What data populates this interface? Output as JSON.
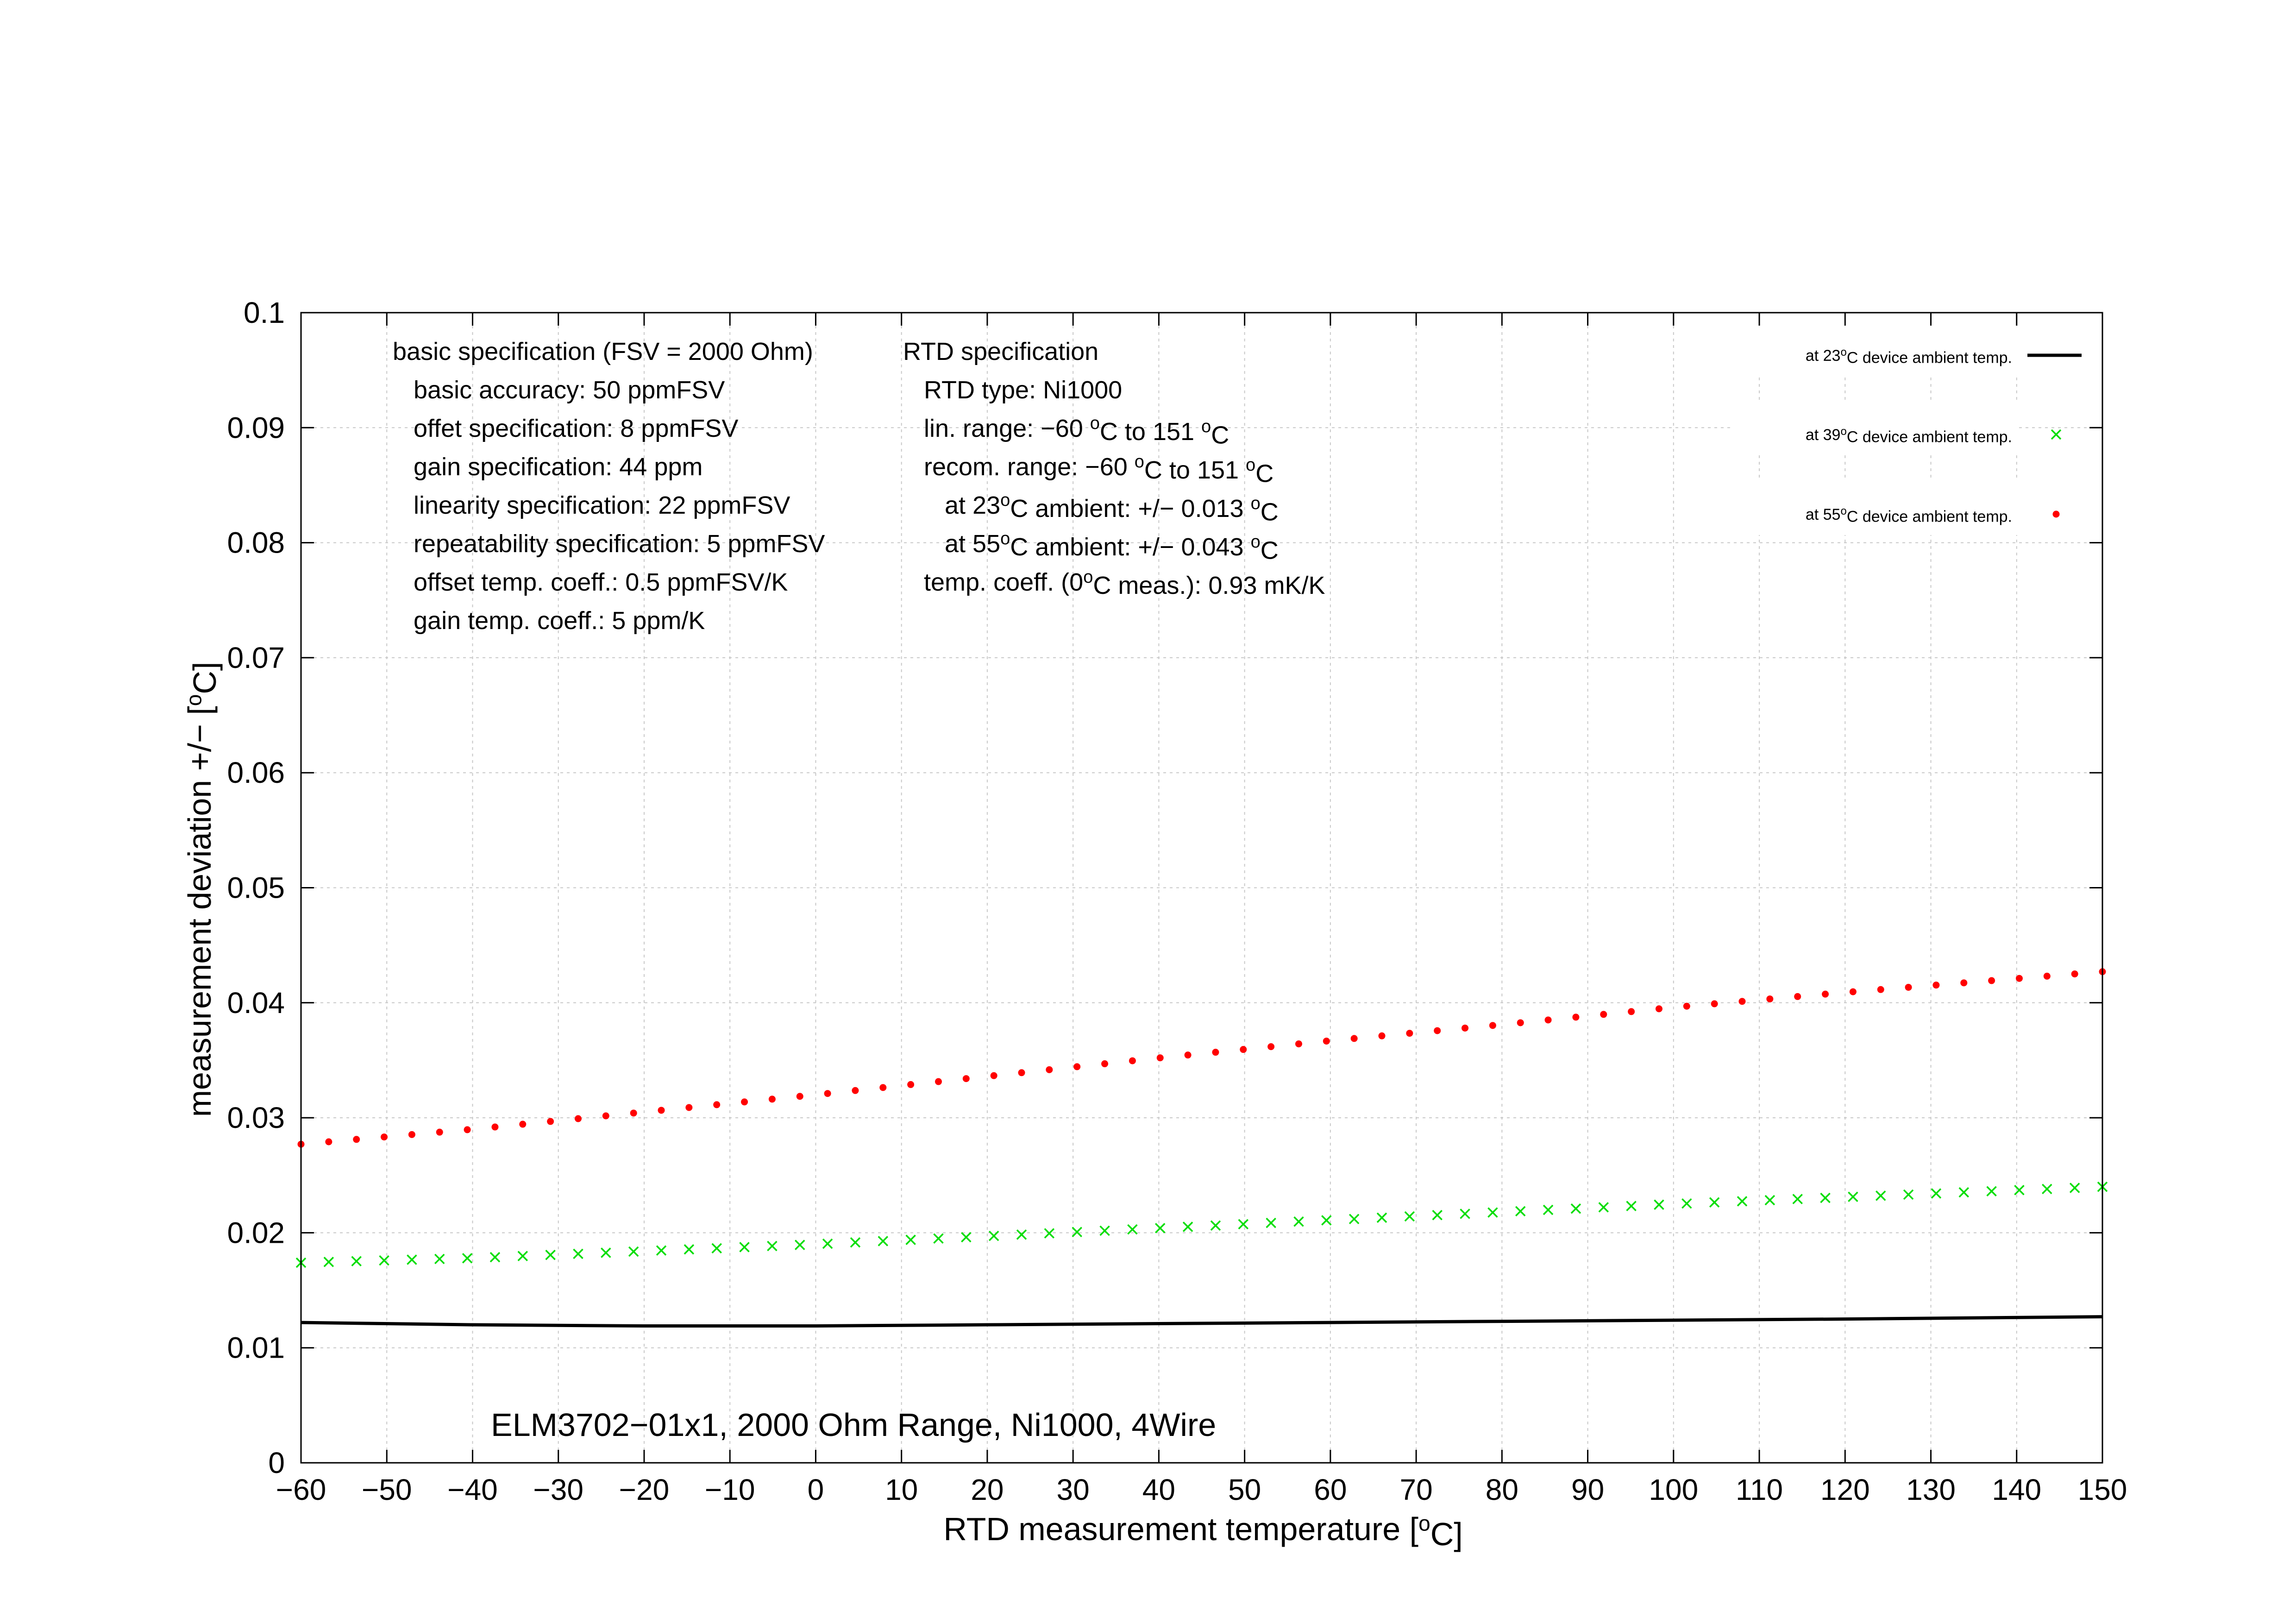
{
  "chart_data": {
    "type": "line",
    "title": "ELM3702−01x1, 2000 Ohm Range, Ni1000, 4Wire",
    "xlabel": {
      "pre": "RTD measurement temperature [",
      "sup": "o",
      "post": "C]"
    },
    "ylabel": {
      "pre": "measurement deviation +/− [",
      "sup": "o",
      "post": "C]"
    },
    "xlim": [
      -60,
      150
    ],
    "ylim": [
      0,
      0.1
    ],
    "grid": true,
    "legend_position": "top-right",
    "xticks": [
      -60,
      -50,
      -40,
      -30,
      -20,
      -10,
      0,
      10,
      20,
      30,
      40,
      50,
      60,
      70,
      80,
      90,
      100,
      110,
      120,
      130,
      140,
      150
    ],
    "xtick_labels": [
      "−60",
      "−50",
      "−40",
      "−30",
      "−20",
      "−10",
      "0",
      "10",
      "20",
      "30",
      "40",
      "50",
      "60",
      "70",
      "80",
      "90",
      "100",
      "110",
      "120",
      "130",
      "140",
      "150"
    ],
    "yticks": [
      0,
      0.01,
      0.02,
      0.03,
      0.04,
      0.05,
      0.06,
      0.07,
      0.08,
      0.09,
      0.1
    ],
    "ytick_labels": [
      "0",
      "0.01",
      "0.02",
      "0.03",
      "0.04",
      "0.05",
      "0.06",
      "0.07",
      "0.08",
      "0.09",
      "0.1"
    ],
    "series": [
      {
        "legend": [
          {
            "t": "at 23"
          },
          {
            "t": "o",
            "sup": true
          },
          {
            "t": "C device ambient temp."
          }
        ],
        "style": "line",
        "color": "#000000",
        "x": [
          -60,
          -40,
          -20,
          0,
          20,
          40,
          60,
          80,
          100,
          120,
          150
        ],
        "values": [
          0.0122,
          0.012,
          0.0119,
          0.0119,
          0.012,
          0.0121,
          0.0122,
          0.0123,
          0.0124,
          0.0125,
          0.0127
        ]
      },
      {
        "legend": [
          {
            "t": "at 39"
          },
          {
            "t": "o",
            "sup": true
          },
          {
            "t": "C device ambient temp."
          }
        ],
        "style": "cross",
        "color": "#00dd00",
        "x": [
          -60,
          -40,
          -20,
          0,
          20,
          40,
          60,
          80,
          100,
          120,
          150
        ],
        "values": [
          0.0174,
          0.0178,
          0.0184,
          0.019,
          0.0197,
          0.0204,
          0.0211,
          0.0218,
          0.0225,
          0.0231,
          0.024
        ]
      },
      {
        "legend": [
          {
            "t": "at 55"
          },
          {
            "t": "o",
            "sup": true
          },
          {
            "t": "C device ambient temp."
          }
        ],
        "style": "dot",
        "color": "#ff0000",
        "x": [
          -60,
          -40,
          -20,
          0,
          20,
          40,
          60,
          80,
          100,
          120,
          150
        ],
        "values": [
          0.0277,
          0.029,
          0.0305,
          0.032,
          0.0336,
          0.0352,
          0.0367,
          0.0381,
          0.0396,
          0.0409,
          0.0427
        ]
      }
    ],
    "annotations": {
      "left": [
        [
          {
            "t": "basic specification (FSV = 2000 Ohm)"
          }
        ],
        [
          {
            "t": "   basic accuracy: 50 ppmFSV"
          }
        ],
        [
          {
            "t": "   offet specification: 8 ppmFSV"
          }
        ],
        [
          {
            "t": "   gain specification: 44 ppm"
          }
        ],
        [
          {
            "t": "   linearity specification: 22 ppmFSV"
          }
        ],
        [
          {
            "t": "   repeatability specification: 5 ppmFSV"
          }
        ],
        [
          {
            "t": "   offset temp. coeff.: 0.5 ppmFSV/K"
          }
        ],
        [
          {
            "t": "   gain temp. coeff.: 5 ppm/K"
          }
        ]
      ],
      "right": [
        [
          {
            "t": "RTD specification"
          }
        ],
        [
          {
            "t": "   RTD type: Ni1000"
          }
        ],
        [
          {
            "t": "   lin. range: −60 "
          },
          {
            "t": "o",
            "sup": true
          },
          {
            "t": "C to 151 "
          },
          {
            "t": "o",
            "sup": true
          },
          {
            "t": "C"
          }
        ],
        [
          {
            "t": "   recom. range: −60 "
          },
          {
            "t": "o",
            "sup": true
          },
          {
            "t": "C to 151 "
          },
          {
            "t": "o",
            "sup": true
          },
          {
            "t": "C"
          }
        ],
        [
          {
            "t": "      at 23"
          },
          {
            "t": "o",
            "sup": true
          },
          {
            "t": "C ambient: +/− 0.013 "
          },
          {
            "t": "o",
            "sup": true
          },
          {
            "t": "C"
          }
        ],
        [
          {
            "t": "      at 55"
          },
          {
            "t": "o",
            "sup": true
          },
          {
            "t": "C ambient: +/− 0.043 "
          },
          {
            "t": "o",
            "sup": true
          },
          {
            "t": "C"
          }
        ],
        [
          {
            "t": "   temp. coeff. (0"
          },
          {
            "t": "o",
            "sup": true
          },
          {
            "t": "C meas.): 0.93 mK/K"
          }
        ]
      ]
    }
  }
}
